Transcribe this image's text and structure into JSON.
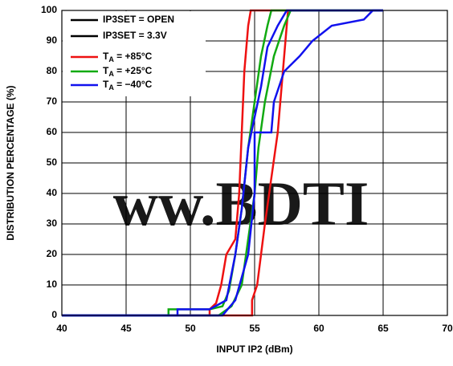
{
  "chart_data": {
    "type": "line",
    "xlabel": "INPUT IP2 (dBm)",
    "ylabel": "DISTRIBUTION PERCENTAGE (%)",
    "xlim": [
      40,
      70
    ],
    "xticks": [
      40,
      45,
      50,
      55,
      60,
      65,
      70
    ],
    "ylim": [
      0,
      100
    ],
    "yticks": [
      0,
      10,
      20,
      30,
      40,
      50,
      60,
      70,
      80,
      90,
      100
    ],
    "grid": true,
    "watermark": "ww.BDTI",
    "legend_corner": "top-left",
    "legend": [
      {
        "name": [
          "IP3SET = OPEN"
        ],
        "color": "#000000"
      },
      {
        "name": [
          "IP3SET = 3.3V"
        ],
        "color": "#000000"
      },
      {
        "name": [
          "T",
          "A",
          " = +85°C"
        ],
        "color": "#ee1111"
      },
      {
        "name": [
          "T",
          "A",
          " = +25°C"
        ],
        "color": "#11aa11"
      },
      {
        "name": [
          "T",
          "A",
          " = −40°C"
        ],
        "color": "#1111ee"
      }
    ],
    "series": [
      {
        "color": "#ee1111",
        "x": [
          40,
          51.5,
          51.5,
          52,
          52.4,
          52.8,
          53.5,
          53.8,
          54,
          54.2,
          54.5,
          54.7,
          65
        ],
        "values": [
          0,
          0,
          2,
          4,
          10,
          20,
          25,
          40,
          60,
          80,
          95,
          100,
          100
        ]
      },
      {
        "color": "#ee1111",
        "x": [
          40,
          54.8,
          54.8,
          55.2,
          55.5,
          55.8,
          56.3,
          56.8,
          57.1,
          57.4,
          57.6,
          65
        ],
        "values": [
          0,
          0,
          5,
          10,
          20,
          30,
          45,
          60,
          75,
          90,
          100,
          100
        ]
      },
      {
        "color": "#11aa11",
        "x": [
          40,
          48.3,
          48.3,
          51.5,
          52.5,
          53,
          53.5,
          54,
          54.5,
          55,
          55.5,
          56,
          56.3,
          65
        ],
        "values": [
          0,
          0,
          2,
          2,
          3,
          8,
          20,
          35,
          55,
          70,
          85,
          95,
          100,
          100
        ]
      },
      {
        "color": "#11aa11",
        "x": [
          40,
          52.2,
          53.2,
          54,
          54.5,
          55,
          55.3,
          55.8,
          56.5,
          57.3,
          57.8,
          65
        ],
        "values": [
          0,
          0,
          3,
          10,
          25,
          40,
          55,
          70,
          85,
          95,
          100,
          100
        ]
      },
      {
        "color": "#1111ee",
        "x": [
          40,
          49,
          49,
          51.5,
          52.8,
          53.5,
          54,
          54.5,
          55,
          55.5,
          56,
          56.8,
          57.5,
          65
        ],
        "values": [
          0,
          0,
          2,
          2,
          5,
          20,
          35,
          55,
          65,
          75,
          88,
          95,
          100,
          100
        ]
      },
      {
        "color": "#1111ee",
        "x": [
          40,
          52.5,
          53.5,
          54.5,
          55,
          55,
          56.3,
          56.5,
          57.3,
          58.5,
          59.5,
          61,
          63.5,
          64.2,
          65
        ],
        "values": [
          0,
          0,
          5,
          20,
          40,
          60,
          60,
          70,
          80,
          85,
          90,
          95,
          97,
          100,
          100
        ]
      }
    ]
  }
}
